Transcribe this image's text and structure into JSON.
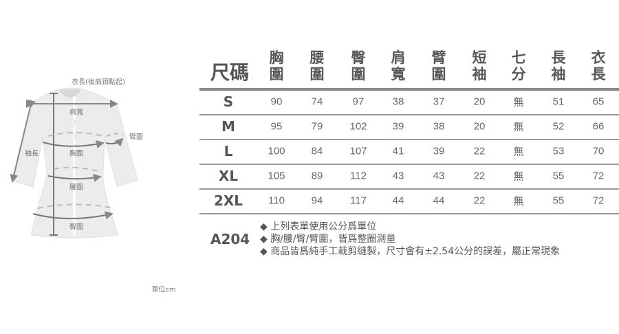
{
  "diagram": {
    "labels": {
      "length": "衣長(後肩頸點起)",
      "shoulder": "肩寬",
      "arm": "臂圍",
      "sleeve": "袖長",
      "chest": "胸圍",
      "waist": "腰圍",
      "hip": "臀圍"
    },
    "unit": "單位cm"
  },
  "table": {
    "size_header": "尺碼",
    "columns": [
      [
        "胸",
        "圍"
      ],
      [
        "腰",
        "圍"
      ],
      [
        "臀",
        "圍"
      ],
      [
        "肩",
        "寬"
      ],
      [
        "臂",
        "圍"
      ],
      [
        "短",
        "袖"
      ],
      [
        "七",
        "分"
      ],
      [
        "長",
        "袖"
      ],
      [
        "衣",
        "長"
      ]
    ],
    "rows": [
      {
        "size": "S",
        "values": [
          "90",
          "74",
          "97",
          "38",
          "37",
          "20",
          "無",
          "51",
          "65"
        ]
      },
      {
        "size": "M",
        "values": [
          "95",
          "79",
          "102",
          "39",
          "38",
          "20",
          "無",
          "52",
          "66"
        ]
      },
      {
        "size": "L",
        "values": [
          "100",
          "84",
          "107",
          "41",
          "39",
          "22",
          "無",
          "53",
          "70"
        ]
      },
      {
        "size": "XL",
        "values": [
          "105",
          "89",
          "112",
          "43",
          "43",
          "22",
          "無",
          "55",
          "72"
        ]
      },
      {
        "size": "2XL",
        "values": [
          "110",
          "94",
          "117",
          "44",
          "44",
          "22",
          "無",
          "55",
          "72"
        ]
      }
    ]
  },
  "model": "A204",
  "notes": [
    "◆ 上列表單使用公分爲單位",
    "◆ 胸/腰/臀/臂圍，皆爲整圈測量",
    "◆ 商品皆爲純手工裁剪縫製，尺寸會有±2.54公分的誤差，屬正常現象"
  ]
}
